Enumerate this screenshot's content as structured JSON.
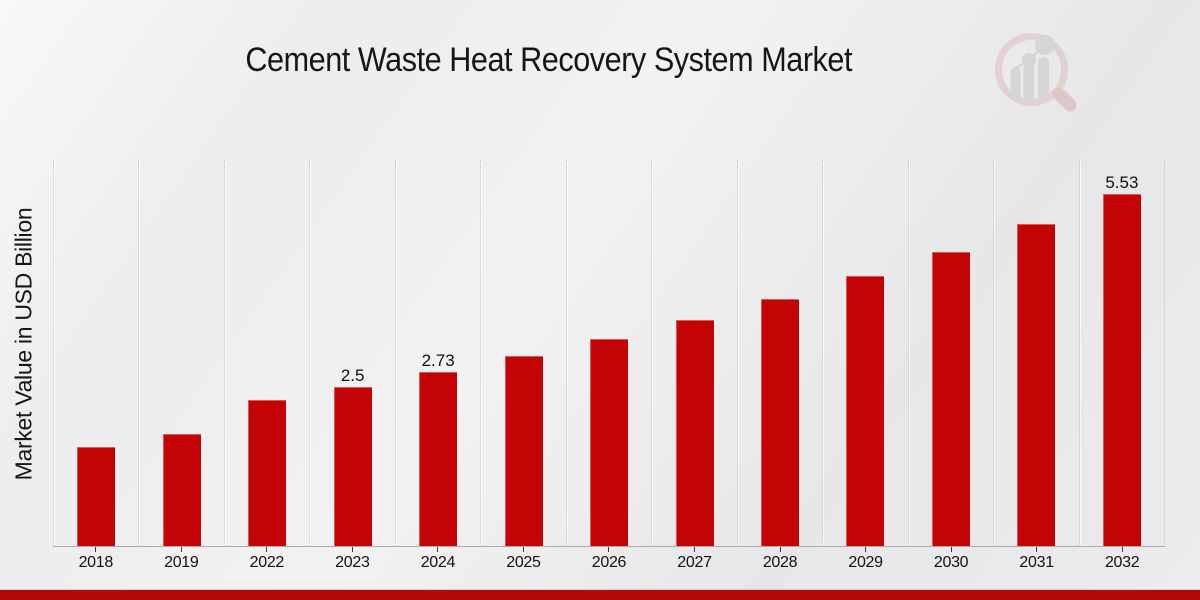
{
  "chart_data": {
    "type": "bar",
    "title": "Cement Waste Heat Recovery System Market",
    "xlabel": "",
    "ylabel": "Market Value in USD Billion",
    "categories": [
      "2018",
      "2019",
      "2022",
      "2023",
      "2024",
      "2025",
      "2026",
      "2027",
      "2028",
      "2029",
      "2030",
      "2031",
      "2032"
    ],
    "values": [
      1.55,
      1.76,
      2.29,
      2.5,
      2.73,
      2.99,
      3.26,
      3.56,
      3.89,
      4.24,
      4.63,
      5.06,
      5.53
    ],
    "bar_labels": {
      "2023": "2.5",
      "2024": "2.73",
      "2032": "5.53"
    },
    "ylim": [
      0,
      6.07
    ],
    "grid": "vertical-dotted",
    "legend": "none",
    "bar_color": "#c40404"
  },
  "watermark": {
    "icon": "magnifier-bar-chart-watermark",
    "ring_color": "#dfc2c2",
    "bars_color": "#c9c9cd"
  },
  "footer": {
    "accent_color": "#b30808"
  }
}
